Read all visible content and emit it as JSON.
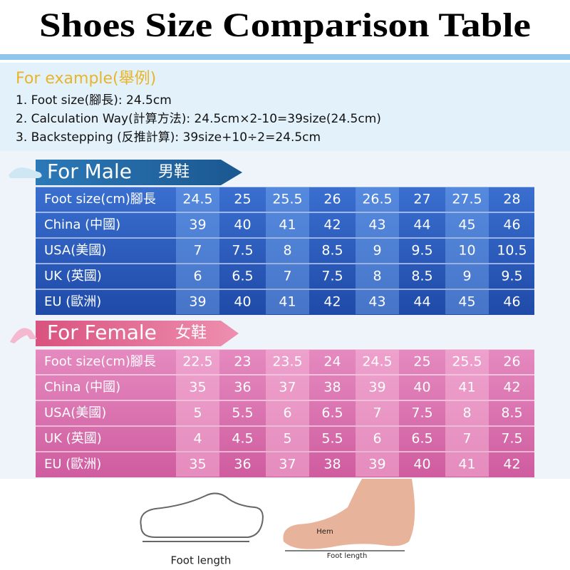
{
  "header": {
    "title": "Shoes Size Comparison Table"
  },
  "example": {
    "heading": "For example(舉例)",
    "lines": [
      "1. Foot size(腳長): 24.5cm",
      "2. Calculation Way(計算方法):  24.5cm×2-10=39size(24.5cm)",
      "3. Backstepping (反推計算):  39size+10÷2=24.5cm"
    ]
  },
  "male": {
    "heading": "For Male",
    "heading_cn": "男鞋",
    "rows": [
      {
        "label": "Foot size(cm)腳長",
        "values": [
          24.5,
          25,
          25.5,
          26,
          26.5,
          27,
          27.5,
          28
        ]
      },
      {
        "label": "China (中國)",
        "values": [
          39,
          40,
          41,
          42,
          43,
          44,
          45,
          46
        ]
      },
      {
        "label": "USA(美國)",
        "values": [
          7,
          7.5,
          8,
          8.5,
          9,
          9.5,
          10,
          10.5
        ]
      },
      {
        "label": "UK (英國)",
        "values": [
          6,
          6.5,
          7,
          7.5,
          8,
          8.5,
          9,
          9.5
        ]
      },
      {
        "label": "EU (歐洲)",
        "values": [
          39,
          40,
          41,
          42,
          43,
          44,
          45,
          46
        ]
      }
    ]
  },
  "female": {
    "heading": "For Female",
    "heading_cn": "女鞋",
    "rows": [
      {
        "label": "Foot size(cm)腳長",
        "values": [
          22.5,
          23,
          23.5,
          24,
          24.5,
          25,
          25.5,
          26
        ]
      },
      {
        "label": "China (中國)",
        "values": [
          35,
          36,
          37,
          38,
          39,
          40,
          41,
          42
        ]
      },
      {
        "label": "USA(美國)",
        "values": [
          5,
          5.5,
          6,
          6.5,
          7,
          7.5,
          8,
          8.5
        ]
      },
      {
        "label": "UK (英國)",
        "values": [
          4,
          4.5,
          5,
          5.5,
          6,
          6.5,
          7,
          7.5
        ]
      },
      {
        "label": "EU (歐洲)",
        "values": [
          35,
          36,
          37,
          38,
          39,
          40,
          41,
          42
        ]
      }
    ]
  },
  "illustrations": {
    "shoe_label": "Foot length",
    "hem_label": "Hem",
    "foot_label": "Foot length"
  }
}
